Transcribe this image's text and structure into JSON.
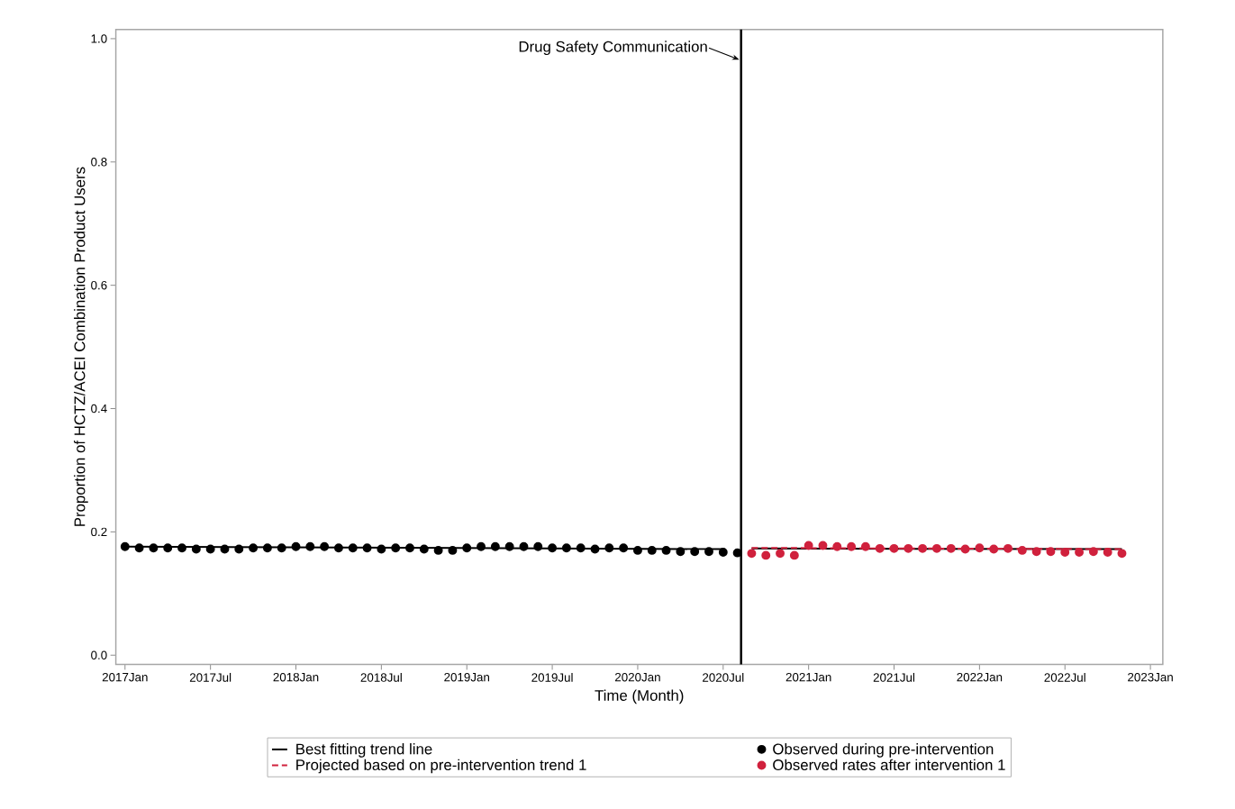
{
  "chart_data": {
    "type": "scatter",
    "xlabel": "Time (Month)",
    "ylabel": "Proportion of HCTZ/ACEI Combination Product Users",
    "xlim": [
      "2016-12-12",
      "2023-01-28"
    ],
    "ylim": [
      -0.015,
      1.015
    ],
    "xticks": [
      {
        "value": "2017-01",
        "label": "2017Jan"
      },
      {
        "value": "2017-07",
        "label": "2017Jul"
      },
      {
        "value": "2018-01",
        "label": "2018Jan"
      },
      {
        "value": "2018-07",
        "label": "2018Jul"
      },
      {
        "value": "2019-01",
        "label": "2019Jan"
      },
      {
        "value": "2019-07",
        "label": "2019Jul"
      },
      {
        "value": "2020-01",
        "label": "2020Jan"
      },
      {
        "value": "2020-07",
        "label": "2020Jul"
      },
      {
        "value": "2021-01",
        "label": "2021Jan"
      },
      {
        "value": "2021-07",
        "label": "2021Jul"
      },
      {
        "value": "2022-01",
        "label": "2022Jan"
      },
      {
        "value": "2022-07",
        "label": "2022Jul"
      },
      {
        "value": "2023-01",
        "label": "2023Jan"
      }
    ],
    "yticks": [
      {
        "value": 0,
        "label": "0.0"
      },
      0.2,
      0.4,
      0.6,
      0.8,
      {
        "value": 1,
        "label": "1.0"
      }
    ],
    "legend": "bottom",
    "ref_lines": [
      {
        "axis": "x",
        "value": "2020-08-09",
        "label": "Drug Safety Communication",
        "color": "#000000"
      }
    ],
    "series": [
      {
        "name": "Best fitting trend line",
        "type": "line",
        "color": "#000000",
        "line_style": "solid",
        "marker": "none",
        "x": [
          "2017-01",
          "2020-07",
          "2020-08",
          "2020-09",
          "2022-11"
        ],
        "values": [
          0.176,
          0.172,
          null,
          0.173,
          0.172
        ]
      },
      {
        "name": "Observed during pre-intervention",
        "color": "#000000",
        "marker": "circle",
        "x": [
          "2017-01",
          "2017-02",
          "2017-03",
          "2017-04",
          "2017-05",
          "2017-06",
          "2017-07",
          "2017-08",
          "2017-09",
          "2017-10",
          "2017-11",
          "2017-12",
          "2018-01",
          "2018-02",
          "2018-03",
          "2018-04",
          "2018-05",
          "2018-06",
          "2018-07",
          "2018-08",
          "2018-09",
          "2018-10",
          "2018-11",
          "2018-12",
          "2019-01",
          "2019-02",
          "2019-03",
          "2019-04",
          "2019-05",
          "2019-06",
          "2019-07",
          "2019-08",
          "2019-09",
          "2019-10",
          "2019-11",
          "2019-12",
          "2020-01",
          "2020-02",
          "2020-03",
          "2020-04",
          "2020-05",
          "2020-06",
          "2020-07",
          "2020-08"
        ],
        "values": [
          0.176,
          0.174,
          0.174,
          0.174,
          0.174,
          0.172,
          0.172,
          0.172,
          0.172,
          0.174,
          0.174,
          0.174,
          0.176,
          0.176,
          0.176,
          0.174,
          0.174,
          0.174,
          0.172,
          0.174,
          0.174,
          0.172,
          0.17,
          0.17,
          0.174,
          0.176,
          0.176,
          0.176,
          0.176,
          0.176,
          0.174,
          0.174,
          0.174,
          0.172,
          0.174,
          0.174,
          0.17,
          0.17,
          0.17,
          0.168,
          0.168,
          0.168,
          0.167,
          0.166
        ]
      },
      {
        "name": "Projected based on pre-intervention trend 1",
        "type": "line",
        "color": "#d0213d",
        "line_style": "dashed",
        "marker": "none",
        "x": [
          "2020-09",
          "2022-11"
        ],
        "values": [
          0.174,
          0.172
        ]
      },
      {
        "name": "Observed rates after intervention 1",
        "color": "#d0213d",
        "marker": "circle",
        "x": [
          "2020-09",
          "2020-10",
          "2020-11",
          "2020-12",
          "2021-01",
          "2021-02",
          "2021-03",
          "2021-04",
          "2021-05",
          "2021-06",
          "2021-07",
          "2021-08",
          "2021-09",
          "2021-10",
          "2021-11",
          "2021-12",
          "2022-01",
          "2022-02",
          "2022-03",
          "2022-04",
          "2022-05",
          "2022-06",
          "2022-07",
          "2022-08",
          "2022-09",
          "2022-10",
          "2022-11"
        ],
        "values": [
          0.165,
          0.162,
          0.165,
          0.162,
          0.178,
          0.178,
          0.176,
          0.176,
          0.176,
          0.173,
          0.173,
          0.173,
          0.173,
          0.173,
          0.173,
          0.172,
          0.174,
          0.172,
          0.173,
          0.17,
          0.168,
          0.168,
          0.167,
          0.167,
          0.168,
          0.167,
          0.165
        ]
      }
    ]
  }
}
